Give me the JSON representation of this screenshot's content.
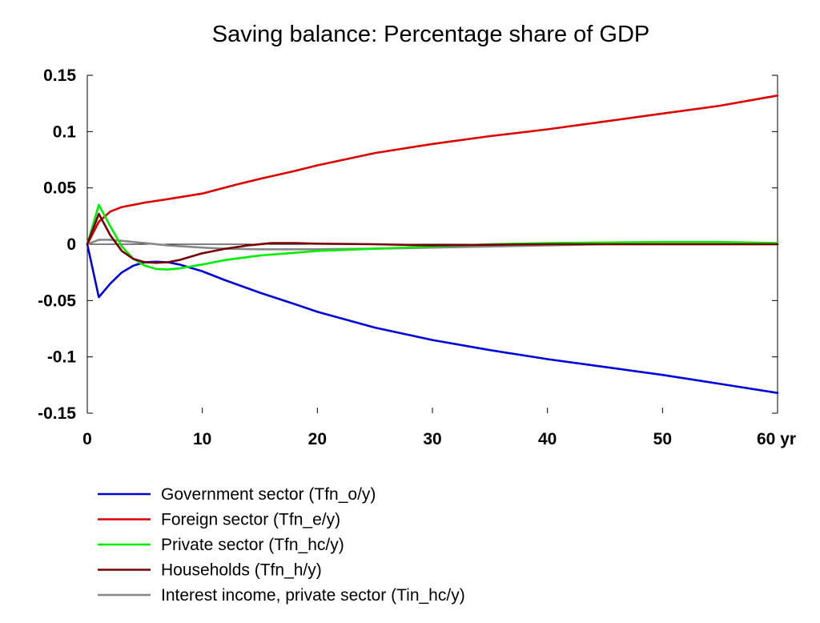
{
  "chart_data": {
    "type": "line",
    "title": "Saving balance: Percentage share of GDP",
    "xlabel": "",
    "ylabel": "",
    "xlim": [
      0,
      60
    ],
    "ylim": [
      -0.15,
      0.15
    ],
    "x_ticks": [
      0,
      10,
      20,
      30,
      40,
      50,
      60
    ],
    "x_tick_labels": [
      "0",
      "10",
      "20",
      "30",
      "40",
      "50",
      "60 yr"
    ],
    "y_ticks": [
      0.15,
      0.1,
      0.05,
      0,
      -0.05,
      -0.1,
      -0.15
    ],
    "y_tick_labels": [
      "0.15",
      "0.1",
      "0.05",
      "0",
      "-0.05",
      "-0.1",
      "-0.15"
    ],
    "grid": false,
    "legend_position": "bottom-left",
    "series": [
      {
        "name": "Government sector (Tfn_o/y)",
        "color": "#0000dd",
        "points": [
          [
            0,
            0
          ],
          [
            1,
            -0.047
          ],
          [
            2,
            -0.035
          ],
          [
            3,
            -0.025
          ],
          [
            4,
            -0.019
          ],
          [
            5,
            -0.016
          ],
          [
            6,
            -0.0155
          ],
          [
            7,
            -0.016
          ],
          [
            8,
            -0.018
          ],
          [
            10,
            -0.024
          ],
          [
            12,
            -0.032
          ],
          [
            15,
            -0.043
          ],
          [
            18,
            -0.053
          ],
          [
            20,
            -0.06
          ],
          [
            25,
            -0.074
          ],
          [
            30,
            -0.085
          ],
          [
            35,
            -0.094
          ],
          [
            40,
            -0.102
          ],
          [
            45,
            -0.109
          ],
          [
            50,
            -0.116
          ],
          [
            55,
            -0.124
          ],
          [
            60,
            -0.132
          ]
        ]
      },
      {
        "name": "Foreign sector (Tfn_e/y)",
        "color": "#dd0000",
        "points": [
          [
            0,
            0
          ],
          [
            1,
            0.02
          ],
          [
            2,
            0.029
          ],
          [
            3,
            0.033
          ],
          [
            4,
            0.035
          ],
          [
            5,
            0.037
          ],
          [
            7,
            0.04
          ],
          [
            10,
            0.045
          ],
          [
            13,
            0.053
          ],
          [
            15,
            0.058
          ],
          [
            18,
            0.065
          ],
          [
            20,
            0.07
          ],
          [
            25,
            0.081
          ],
          [
            30,
            0.089
          ],
          [
            35,
            0.096
          ],
          [
            40,
            0.102
          ],
          [
            45,
            0.109
          ],
          [
            50,
            0.116
          ],
          [
            55,
            0.123
          ],
          [
            60,
            0.132
          ]
        ]
      },
      {
        "name": "Private sector (Tfn_hc/y)",
        "color": "#00ee00",
        "points": [
          [
            0,
            0
          ],
          [
            1,
            0.035
          ],
          [
            2,
            0.016
          ],
          [
            3,
            -0.002
          ],
          [
            4,
            -0.013
          ],
          [
            5,
            -0.019
          ],
          [
            6,
            -0.022
          ],
          [
            7,
            -0.0225
          ],
          [
            8,
            -0.0215
          ],
          [
            10,
            -0.018
          ],
          [
            12,
            -0.014
          ],
          [
            15,
            -0.01
          ],
          [
            20,
            -0.006
          ],
          [
            25,
            -0.004
          ],
          [
            30,
            -0.002
          ],
          [
            35,
            0
          ],
          [
            40,
            0.001
          ],
          [
            50,
            0.002
          ],
          [
            55,
            0.002
          ],
          [
            60,
            0.001
          ]
        ]
      },
      {
        "name": "Households (Tfn_h/y)",
        "color": "#770000",
        "points": [
          [
            0,
            0
          ],
          [
            1,
            0.027
          ],
          [
            2,
            0.008
          ],
          [
            3,
            -0.006
          ],
          [
            4,
            -0.013
          ],
          [
            5,
            -0.016
          ],
          [
            6,
            -0.0165
          ],
          [
            7,
            -0.016
          ],
          [
            8,
            -0.014
          ],
          [
            10,
            -0.008
          ],
          [
            12,
            -0.004
          ],
          [
            14,
            -0.001
          ],
          [
            16,
            0.001
          ],
          [
            18,
            0.001
          ],
          [
            20,
            0.0005
          ],
          [
            25,
            0
          ],
          [
            30,
            -0.001
          ],
          [
            35,
            -0.0005
          ],
          [
            40,
            0
          ],
          [
            50,
            0
          ],
          [
            60,
            0
          ]
        ]
      },
      {
        "name": "Interest income, private sector (Tin_hc/y)",
        "color": "#888888",
        "points": [
          [
            0,
            0
          ],
          [
            1,
            0.004
          ],
          [
            2,
            0.004
          ],
          [
            3,
            0.003
          ],
          [
            4,
            0.002
          ],
          [
            5,
            0.001
          ],
          [
            7,
            -0.001
          ],
          [
            10,
            -0.003
          ],
          [
            12,
            -0.004
          ],
          [
            15,
            -0.0045
          ],
          [
            20,
            -0.0045
          ],
          [
            25,
            -0.004
          ],
          [
            30,
            -0.003
          ],
          [
            35,
            -0.002
          ],
          [
            40,
            -0.001
          ],
          [
            45,
            0
          ],
          [
            50,
            0
          ],
          [
            55,
            0
          ],
          [
            60,
            0
          ]
        ]
      }
    ]
  }
}
